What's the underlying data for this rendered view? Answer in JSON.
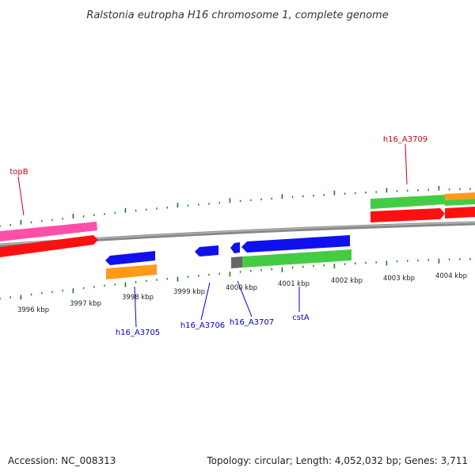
{
  "title": "Ralstonia eutropha H16 chromosome 1, complete genome",
  "accession": "Accession: NC_008313",
  "topology": "Topology: circular; Length: 4,052,032 bp; Genes: 3,711",
  "ticks": [
    "3996 kbp",
    "3997 kbp",
    "3998 kbp",
    "3999 kbp",
    "4000 kbp",
    "4001 kbp",
    "4002 kbp",
    "4003 kbp",
    "4004 kbp"
  ],
  "genes": {
    "topB": "topB",
    "h16_A3709": "h16_A3709",
    "h16_A3705": "h16_A3705",
    "h16_A3706": "h16_A3706",
    "h16_A3707": "h16_A3707",
    "cstA": "cstA"
  },
  "colors": {
    "forward_label": "#cc0000",
    "reverse_label": "#0000cc",
    "tick": "#1a7a1a",
    "backbone": "#888888",
    "pink": "#ff4fa8",
    "red": "#ff1010",
    "green": "#44cc44",
    "orange": "#ff9a1a",
    "blue": "#1010ee",
    "gray": "#666666"
  }
}
